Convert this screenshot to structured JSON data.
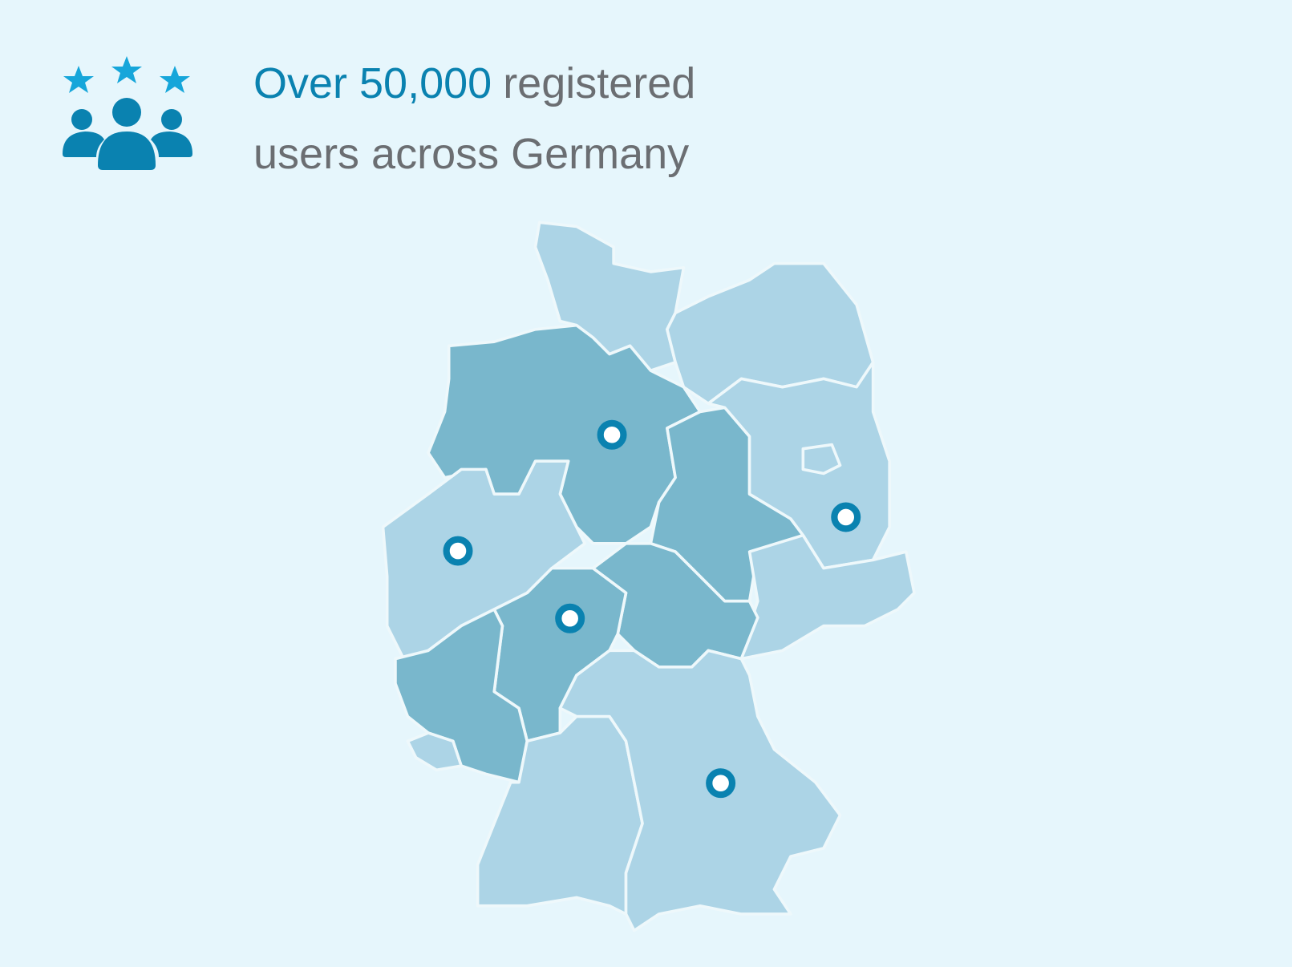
{
  "headline": {
    "highlight": "Over 50,000",
    "line1_rest": "registered",
    "line2": "users across Germany"
  }
}
